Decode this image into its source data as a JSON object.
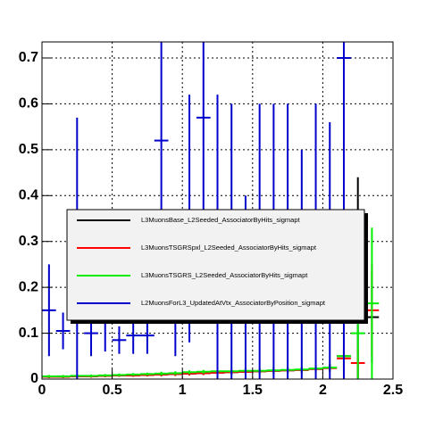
{
  "chart_data": {
    "type": "errorbar",
    "x": [
      0.05,
      0.15,
      0.25,
      0.35,
      0.45,
      0.55,
      0.65,
      0.75,
      0.85,
      0.95,
      1.05,
      1.15,
      1.25,
      1.35,
      1.45,
      1.55,
      1.65,
      1.75,
      1.85,
      1.95,
      2.05,
      2.15,
      2.25,
      2.35
    ],
    "xerr": 0.05,
    "series": [
      {
        "name": "L3MuonsBase_L2Seeded_AssociatorByHits_sigmapt",
        "color": "#000000",
        "values": [
          0.005,
          0.005,
          0.006,
          0.006,
          0.007,
          0.008,
          0.008,
          0.009,
          0.01,
          0.011,
          0.012,
          0.013,
          0.014,
          0.015,
          0.016,
          0.017,
          0.018,
          0.019,
          0.02,
          0.022,
          0.024,
          0.05,
          0.22,
          0.135
        ],
        "errors": [
          0.003,
          0.003,
          0.003,
          0.003,
          0.003,
          0.003,
          0.003,
          0.003,
          0.004,
          0.004,
          0.004,
          0.004,
          0.005,
          0.005,
          0.005,
          0.005,
          0.006,
          0.006,
          0.006,
          0.007,
          0.008,
          0.02,
          0.22,
          0.1
        ]
      },
      {
        "name": "L3MuonsTSGRSpxl_L2Seeded_AssociatorByHits_sigmapt",
        "color": "#ff0000",
        "values": [
          0.005,
          0.005,
          0.006,
          0.006,
          0.007,
          0.008,
          0.008,
          0.009,
          0.01,
          0.011,
          0.012,
          0.013,
          0.014,
          0.015,
          0.016,
          0.017,
          0.018,
          0.019,
          0.02,
          0.022,
          0.024,
          0.045,
          0.035,
          0.15
        ],
        "errors": [
          0.003,
          0.003,
          0.003,
          0.003,
          0.003,
          0.003,
          0.003,
          0.003,
          0.004,
          0.004,
          0.004,
          0.004,
          0.005,
          0.005,
          0.005,
          0.005,
          0.006,
          0.006,
          0.006,
          0.007,
          0.008,
          0.02,
          0.03,
          0.1
        ]
      },
      {
        "name": "L3MuonsTSGRS_L2Seeded_AssociatorByHits_sigmapt",
        "color": "#00ee00",
        "values": [
          0.006,
          0.006,
          0.007,
          0.007,
          0.008,
          0.009,
          0.01,
          0.011,
          0.012,
          0.013,
          0.015,
          0.016,
          0.017,
          0.017,
          0.018,
          0.018,
          0.019,
          0.02,
          0.021,
          0.023,
          0.025,
          0.05,
          0.1,
          0.165
        ],
        "errors": [
          0.003,
          0.003,
          0.003,
          0.003,
          0.003,
          0.003,
          0.003,
          0.003,
          0.004,
          0.004,
          0.004,
          0.004,
          0.005,
          0.005,
          0.005,
          0.005,
          0.006,
          0.006,
          0.006,
          0.007,
          0.008,
          0.05,
          0.1,
          0.165
        ]
      },
      {
        "name": "L2MuonsForL3_UpdatedAtVtx_AssociatorByPosition_sigmapt",
        "color": "#0000cc",
        "values": [
          0.15,
          0.105,
          0.24,
          0.1,
          0.13,
          0.085,
          0.095,
          0.095,
          0.52,
          0.15,
          0.35,
          0.57,
          0.3,
          0.3,
          0.2,
          0.3,
          0.3,
          0.3,
          0.25,
          0.3,
          0.28,
          0.7,
          null,
          null
        ],
        "errors": [
          0.1,
          0.04,
          0.33,
          0.05,
          0.07,
          0.03,
          0.04,
          0.04,
          0.3,
          0.1,
          0.27,
          0.4,
          0.32,
          0.3,
          0.2,
          0.3,
          0.3,
          0.3,
          0.25,
          0.3,
          0.28,
          0.7,
          null,
          null
        ]
      }
    ],
    "xlim": [
      0,
      2.5
    ],
    "ylim": [
      0,
      0.735
    ],
    "xticks": [
      0,
      0.5,
      1,
      1.5,
      2,
      2.5
    ],
    "yticks": [
      0,
      0.1,
      0.2,
      0.3,
      0.4,
      0.5,
      0.6,
      0.7
    ],
    "grid": true
  }
}
